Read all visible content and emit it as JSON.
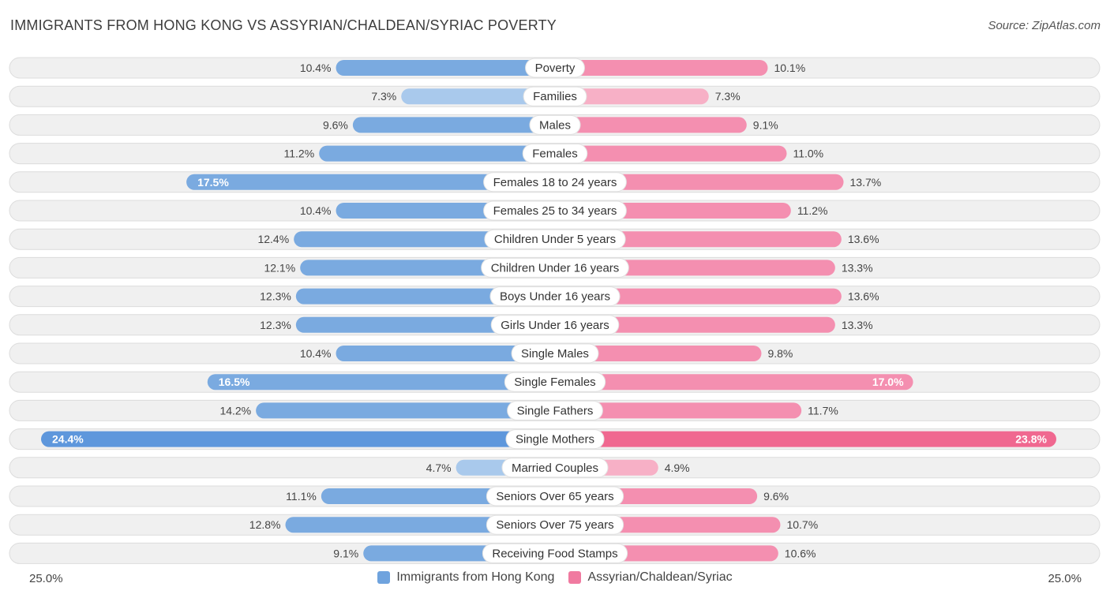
{
  "title": "IMMIGRANTS FROM HONG KONG VS ASSYRIAN/CHALDEAN/SYRIAC POVERTY",
  "source": "Source: ZipAtlas.com",
  "axis": {
    "left_label": "25.0%",
    "right_label": "25.0%"
  },
  "legend": {
    "left": "Immigrants from Hong Kong",
    "right": "Assyrian/Chaldean/Syriac"
  },
  "colors": {
    "left_bar": "#7aaae0",
    "left_bar_light": "#a9c9ec",
    "left_bar_strong": "#5e97dc",
    "right_bar": "#f48fb0",
    "right_bar_light": "#f7b0c6",
    "right_bar_strong": "#f06890",
    "legend_left": "#6fa3de",
    "legend_right": "#f07aa0"
  },
  "chart_data": {
    "type": "bar",
    "orientation": "horizontal-diverging",
    "title": "IMMIGRANTS FROM HONG KONG VS ASSYRIAN/CHALDEAN/SYRIAC POVERTY",
    "max_value": 25.0,
    "unit": "%",
    "categories": [
      "Poverty",
      "Families",
      "Males",
      "Females",
      "Females 18 to 24 years",
      "Females 25 to 34 years",
      "Children Under 5 years",
      "Children Under 16 years",
      "Boys Under 16 years",
      "Girls Under 16 years",
      "Single Males",
      "Single Females",
      "Single Fathers",
      "Single Mothers",
      "Married Couples",
      "Seniors Over 65 years",
      "Seniors Over 75 years",
      "Receiving Food Stamps"
    ],
    "series": [
      {
        "name": "Immigrants from Hong Kong",
        "values": [
          10.4,
          7.3,
          9.6,
          11.2,
          17.5,
          10.4,
          12.4,
          12.1,
          12.3,
          12.3,
          10.4,
          16.5,
          14.2,
          24.4,
          4.7,
          11.1,
          12.8,
          9.1
        ],
        "labels": [
          "10.4%",
          "7.3%",
          "9.6%",
          "11.2%",
          "17.5%",
          "10.4%",
          "12.4%",
          "12.1%",
          "12.3%",
          "12.3%",
          "10.4%",
          "16.5%",
          "14.2%",
          "24.4%",
          "4.7%",
          "11.1%",
          "12.8%",
          "9.1%"
        ]
      },
      {
        "name": "Assyrian/Chaldean/Syriac",
        "values": [
          10.1,
          7.3,
          9.1,
          11.0,
          13.7,
          11.2,
          13.6,
          13.3,
          13.6,
          13.3,
          9.8,
          17.0,
          11.7,
          23.8,
          4.9,
          9.6,
          10.7,
          10.6
        ],
        "labels": [
          "10.1%",
          "7.3%",
          "9.1%",
          "11.0%",
          "13.7%",
          "11.2%",
          "13.6%",
          "13.3%",
          "13.6%",
          "13.3%",
          "9.8%",
          "17.0%",
          "11.7%",
          "23.8%",
          "4.9%",
          "9.6%",
          "10.7%",
          "10.6%"
        ]
      }
    ],
    "xlim": [
      -25.0,
      25.0
    ]
  }
}
